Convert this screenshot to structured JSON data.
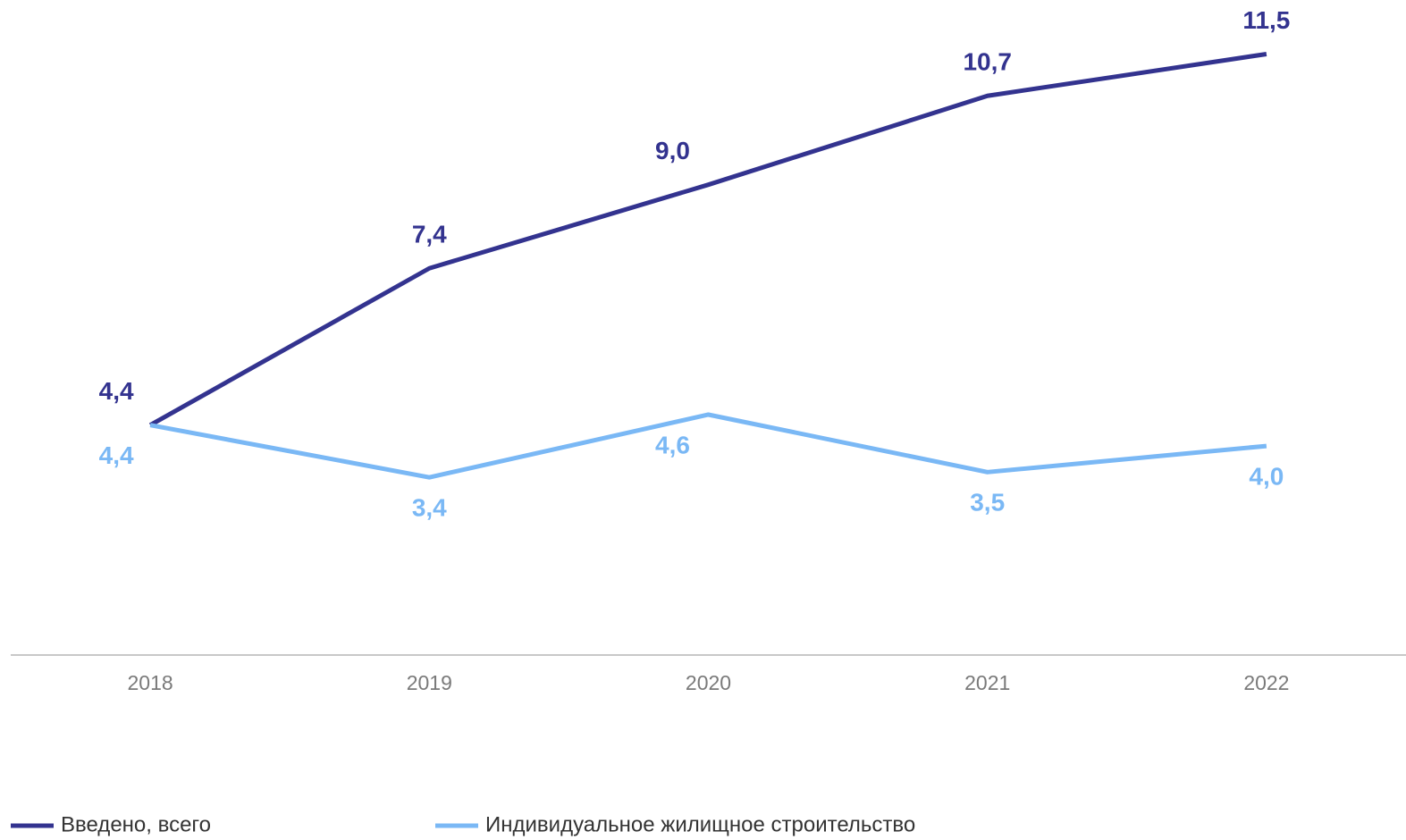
{
  "chart_data": {
    "type": "line",
    "categories": [
      "2018",
      "2019",
      "2020",
      "2021",
      "2022"
    ],
    "series": [
      {
        "name": "Введено, всего",
        "color": "#33338f",
        "values": [
          4.4,
          7.4,
          9.0,
          10.7,
          11.5
        ],
        "value_labels": [
          "4,4",
          "7,4",
          "9,0",
          "10,7",
          "11,5"
        ]
      },
      {
        "name": "Индивидуальное жилищное строительство",
        "color": "#7ab8f5",
        "values": [
          4.4,
          3.4,
          4.6,
          3.5,
          4.0
        ],
        "value_labels": [
          "4,4",
          "3,4",
          "4,6",
          "3,5",
          "4,0"
        ]
      }
    ],
    "ylim": [
      0,
      12.5
    ]
  }
}
